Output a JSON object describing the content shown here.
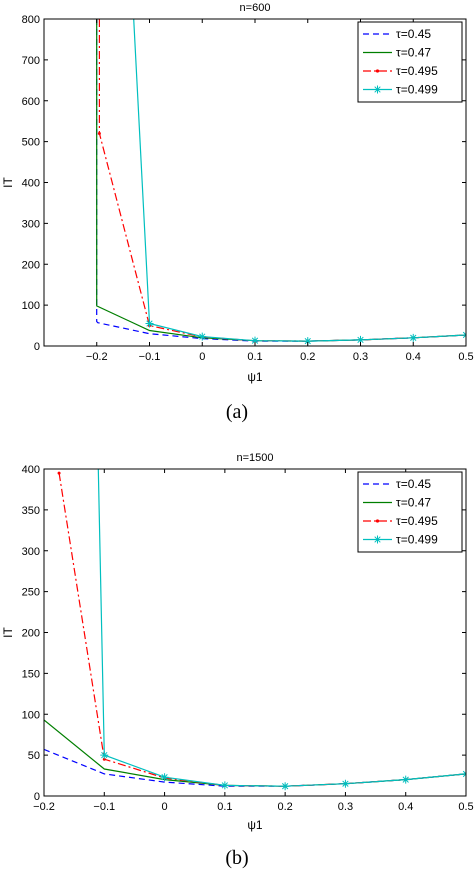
{
  "chart_data": [
    {
      "type": "line",
      "caption": "(a)",
      "title": "n=600",
      "xlabel": "ψ1",
      "ylabel": "IT",
      "xlim": [
        -0.3,
        0.5
      ],
      "ylim": [
        0,
        800
      ],
      "xticks": [
        "−0.2",
        "−0.1",
        "0",
        "0.1",
        "0.2",
        "0.3",
        "0.4",
        "0.5"
      ],
      "yticks": [
        "0",
        "100",
        "200",
        "300",
        "400",
        "500",
        "600",
        "700",
        "800"
      ],
      "legend_position": "top-right",
      "series": [
        {
          "name": "τ=0.45",
          "color": "#0000ff",
          "dash": "dashed",
          "marker": "none",
          "x": [
            -0.2,
            -0.2,
            -0.198,
            -0.1,
            0,
            0.1,
            0.2,
            0.3,
            0.4,
            0.5
          ],
          "y": [
            800,
            60,
            57,
            30,
            18,
            12,
            12,
            15,
            20,
            27
          ]
        },
        {
          "name": "τ=0.47",
          "color": "#007f00",
          "dash": "solid",
          "marker": "none",
          "x": [
            -0.2,
            -0.2,
            -0.1,
            0,
            0.1,
            0.2,
            0.3,
            0.4,
            0.5
          ],
          "y": [
            800,
            98,
            38,
            20,
            13,
            12,
            15,
            20,
            27
          ]
        },
        {
          "name": "τ=0.495",
          "color": "#ff0000",
          "dash": "dashdot",
          "marker": "dot",
          "x": [
            -0.195,
            -0.195,
            -0.1,
            0,
            0.1,
            0.2,
            0.3,
            0.4,
            0.5
          ],
          "y": [
            800,
            520,
            50,
            22,
            13,
            12,
            15,
            20,
            27
          ]
        },
        {
          "name": "τ=0.499",
          "color": "#00bfbf",
          "dash": "solid",
          "marker": "star",
          "x": [
            -0.13,
            -0.1,
            0,
            0.1,
            0.2,
            0.3,
            0.4,
            0.5
          ],
          "y": [
            800,
            55,
            23,
            13,
            12,
            15,
            20,
            27
          ]
        }
      ]
    },
    {
      "type": "line",
      "caption": "(b)",
      "title": "n=1500",
      "xlabel": "ψ1",
      "ylabel": "IT",
      "xlim": [
        -0.2,
        0.5
      ],
      "ylim": [
        0,
        400
      ],
      "xticks": [
        "−0.2",
        "−0.1",
        "0",
        "0.1",
        "0.2",
        "0.3",
        "0.4",
        "0.5"
      ],
      "yticks": [
        "0",
        "50",
        "100",
        "150",
        "200",
        "250",
        "300",
        "350",
        "400"
      ],
      "legend_position": "top-right",
      "series": [
        {
          "name": "τ=0.45",
          "color": "#0000ff",
          "dash": "dashed",
          "marker": "none",
          "x": [
            -0.2,
            -0.1,
            0,
            0.1,
            0.2,
            0.3,
            0.4,
            0.5
          ],
          "y": [
            57,
            27,
            17,
            12,
            12,
            15,
            20,
            27
          ]
        },
        {
          "name": "τ=0.47",
          "color": "#007f00",
          "dash": "solid",
          "marker": "none",
          "x": [
            -0.2,
            -0.1,
            0,
            0.1,
            0.2,
            0.3,
            0.4,
            0.5
          ],
          "y": [
            93,
            33,
            20,
            13,
            12,
            15,
            20,
            27
          ]
        },
        {
          "name": "τ=0.495",
          "color": "#ff0000",
          "dash": "dashdot",
          "marker": "dot",
          "x": [
            -0.175,
            -0.1,
            0,
            0.1,
            0.2,
            0.3,
            0.4,
            0.5
          ],
          "y": [
            395,
            45,
            22,
            13,
            12,
            15,
            20,
            27
          ]
        },
        {
          "name": "τ=0.499",
          "color": "#00bfbf",
          "dash": "solid",
          "marker": "star",
          "x": [
            -0.11,
            -0.1,
            0,
            0.1,
            0.2,
            0.3,
            0.4,
            0.5
          ],
          "y": [
            400,
            50,
            23,
            13,
            12,
            15,
            20,
            27
          ]
        }
      ]
    }
  ]
}
